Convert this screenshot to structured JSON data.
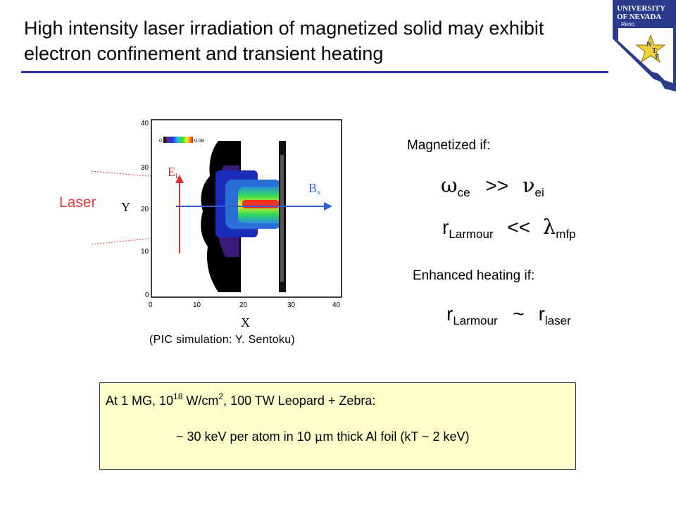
{
  "title": "High intensity laser irradiation of magnetized solid may exhibit electron confinement and transient heating",
  "logo": {
    "line1": "UNIVERSITY",
    "line2": "OF NEVADA",
    "line3": "Reno",
    "mark_n": "N",
    "mark_t": "T",
    "mark_f": "F"
  },
  "laser_label": "Laser",
  "plot": {
    "colorbar_min": "0",
    "colorbar_max": "0.08",
    "y_ticks": [
      "40",
      "30",
      "20",
      "10",
      "0"
    ],
    "x_ticks": [
      "0",
      "10",
      "20",
      "30",
      "40"
    ],
    "xlabel": "X",
    "ylabel": "Y",
    "el_label": "E",
    "el_sub": "L",
    "bx_label": "B",
    "bx_sub": "x"
  },
  "caption": "(PIC simulation:  Y. Sentoku)",
  "magnetized": {
    "heading": "Magnetized if:",
    "eq1": {
      "lhs_sym": "ω",
      "lhs_sub": "ce",
      "op": ">>",
      "rhs_sym": "ν",
      "rhs_sub": "ei"
    },
    "eq2": {
      "lhs": "r",
      "lhs_sub": "Larmour",
      "op": "<<",
      "rhs_sym": "λ",
      "rhs_sub": "mfp"
    }
  },
  "heating": {
    "heading": "Enhanced heating if:",
    "eq": {
      "lhs": "r",
      "lhs_sub": "Larmour",
      "op": "~",
      "rhs": "r",
      "rhs_sub": "laser"
    }
  },
  "box": {
    "l1_a": "At 1 MG, 10",
    "l1_sup1": "18",
    "l1_b": " W/cm",
    "l1_sup2": "2",
    "l1_c": ", 100 TW Leopard + Zebra:",
    "l2_a": "~ 30 keV per atom in 10 ",
    "l2_mu": "μ",
    "l2_b": "m thick Al foil  (kT ~ 2 keV)"
  },
  "colors": {
    "rule": "#3333aa",
    "laser": "#e23b3b",
    "box_bg": "#ffffcc",
    "arrow_blue": "#2f5fd6",
    "arrow_red": "#d93030"
  }
}
